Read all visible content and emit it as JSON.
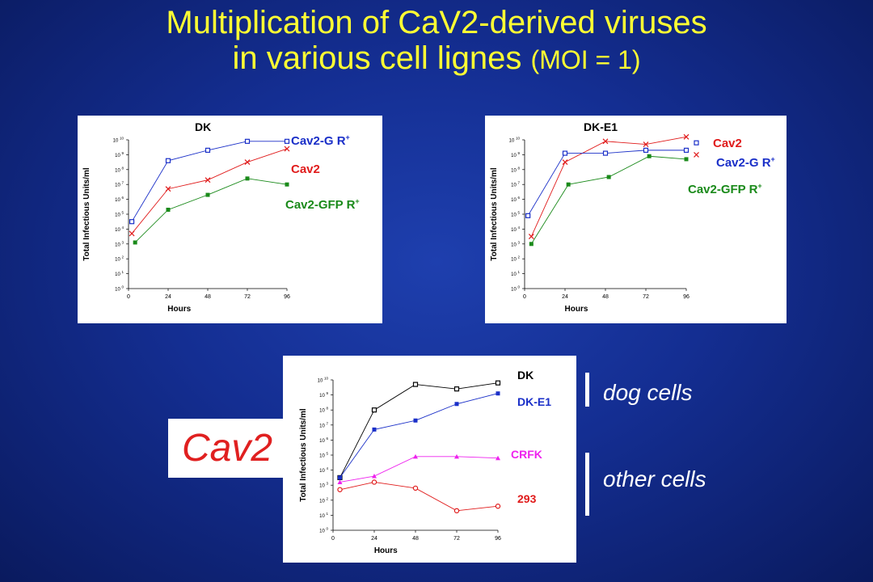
{
  "title": {
    "line1": "Multiplication of CaV2-derived viruses",
    "line2": "in various cell lignes",
    "line2_suffix": "(MOI = 1)"
  },
  "colors": {
    "blue": "#1a2fc8",
    "red": "#e01b1b",
    "green": "#1a8a1a",
    "black": "#000000",
    "magenta": "#ee22ee",
    "title": "#ffff33"
  },
  "cav2_label": "Cav2",
  "groups": {
    "dog": "dog cells",
    "other": "other cells"
  },
  "chart_data": [
    {
      "type": "line",
      "title": "DK",
      "xlabel": "Hours",
      "ylabel": "Total Infectious  Units/ml",
      "xticks": [
        0,
        24,
        48,
        72,
        96
      ],
      "xlim": [
        0,
        96
      ],
      "yticks": [
        "10 0",
        "10 1",
        "10 2",
        "10 3",
        "10 4",
        "10 5",
        "10 6",
        "10 7",
        "10 8",
        "10 9",
        "10 10"
      ],
      "ylim": [
        0,
        10
      ],
      "series": [
        {
          "name": "Cav2-G R",
          "color": "#1a2fc8",
          "marker": "open-square",
          "x": [
            2,
            24,
            48,
            72,
            96
          ],
          "y": [
            4.5,
            8.6,
            9.3,
            9.9,
            9.9
          ]
        },
        {
          "name": "Cav2",
          "color": "#e01b1b",
          "marker": "x",
          "x": [
            2,
            24,
            48,
            72,
            96
          ],
          "y": [
            3.7,
            6.7,
            7.3,
            8.5,
            9.4
          ]
        },
        {
          "name": "Cav2-GFP R",
          "color": "#1a8a1a",
          "marker": "filled-square",
          "x": [
            4,
            24,
            48,
            72,
            96
          ],
          "y": [
            3.1,
            5.3,
            6.3,
            7.4,
            7.0
          ]
        }
      ]
    },
    {
      "type": "line",
      "title": "DK-E1",
      "xlabel": "Hours",
      "ylabel": "Total Infectious  Units/ml",
      "xticks": [
        0,
        24,
        48,
        72,
        96
      ],
      "xlim": [
        0,
        96
      ],
      "yticks": [
        "10 0",
        "10 1",
        "10 2",
        "10 3",
        "10 4",
        "10 5",
        "10 6",
        "10 7",
        "10 8",
        "10 9",
        "10 10"
      ],
      "ylim": [
        0,
        10
      ],
      "series": [
        {
          "name": "Cav2",
          "color": "#e01b1b",
          "marker": "x",
          "x": [
            4,
            24,
            48,
            72,
            96,
            102
          ],
          "y": [
            3.5,
            8.5,
            9.9,
            9.7,
            10.2,
            9.0
          ]
        },
        {
          "name": "Cav2-G R",
          "color": "#1a2fc8",
          "marker": "open-square",
          "x": [
            2,
            24,
            48,
            72,
            96,
            102
          ],
          "y": [
            4.9,
            9.1,
            9.1,
            9.3,
            9.3,
            9.8
          ]
        },
        {
          "name": "Cav2-GFP R",
          "color": "#1a8a1a",
          "marker": "filled-square",
          "x": [
            4,
            26,
            50,
            74,
            96
          ],
          "y": [
            3.0,
            7.0,
            7.5,
            8.9,
            8.7
          ]
        }
      ]
    },
    {
      "type": "line",
      "title": "",
      "xlabel": "Hours",
      "ylabel": "Total Infectious  Units/ml",
      "xticks": [
        0,
        24,
        48,
        72,
        96
      ],
      "xlim": [
        0,
        96
      ],
      "yticks": [
        "10 0",
        "10 1",
        "10 2",
        "10 3",
        "10 4",
        "10 5",
        "10 6",
        "10 7",
        "10 8",
        "10 9",
        "10 10"
      ],
      "ylim": [
        0,
        10
      ],
      "series": [
        {
          "name": "DK",
          "color": "#000000",
          "marker": "open-square",
          "x": [
            4,
            24,
            48,
            72,
            96
          ],
          "y": [
            3.5,
            8.0,
            9.7,
            9.4,
            9.8
          ]
        },
        {
          "name": "DK-E1",
          "color": "#1a2fc8",
          "marker": "filled-square",
          "x": [
            4,
            24,
            48,
            72,
            96
          ],
          "y": [
            3.5,
            6.7,
            7.3,
            8.4,
            9.1
          ]
        },
        {
          "name": "CRFK",
          "color": "#ee22ee",
          "marker": "triangle",
          "x": [
            4,
            24,
            48,
            72,
            96
          ],
          "y": [
            3.2,
            3.6,
            4.9,
            4.9,
            4.8
          ]
        },
        {
          "name": "293",
          "color": "#e01b1b",
          "marker": "open-circle",
          "x": [
            4,
            24,
            48,
            72,
            96
          ],
          "y": [
            2.7,
            3.2,
            2.8,
            1.3,
            1.6
          ]
        }
      ]
    }
  ],
  "labels": {
    "c1": {
      "title": "DK",
      "s1": "Cav2-G R",
      "s2": "Cav2",
      "s3": "Cav2-GFP R",
      "sup": "+"
    },
    "c2": {
      "title": "DK-E1",
      "s1": "Cav2",
      "s2": "Cav2-G R",
      "s3": "Cav2-GFP R",
      "sup": "+"
    },
    "c3": {
      "s1": "DK",
      "s2": "DK-E1",
      "s3": "CRFK",
      "s4": "293"
    }
  }
}
